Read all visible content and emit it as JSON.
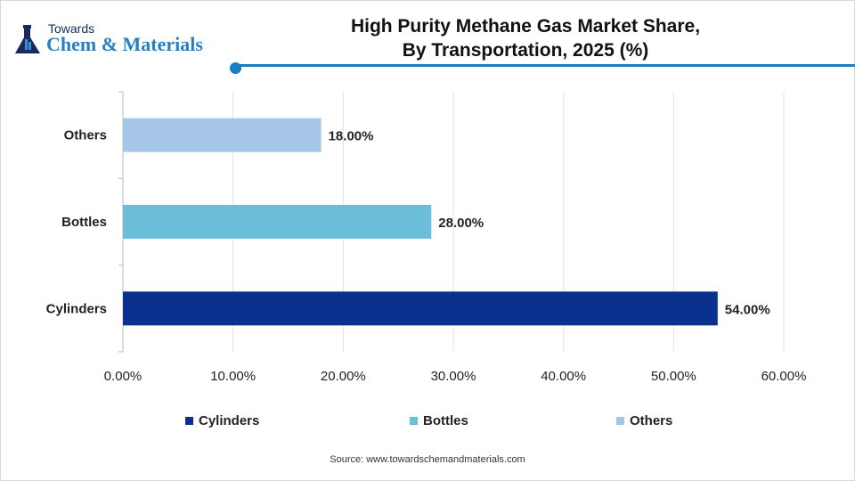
{
  "logo": {
    "line1": "Towards",
    "line2": "Chem & Materials"
  },
  "title_line1": "High Purity Methane Gas Market Share,",
  "title_line2": "By Transportation, 2025 (%)",
  "source": "Source: www.towardschemandmaterials.com",
  "chart_data": {
    "type": "bar",
    "orientation": "horizontal",
    "title": "High Purity Methane Gas Market Share, By Transportation, 2025 (%)",
    "categories": [
      "Cylinders",
      "Bottles",
      "Others"
    ],
    "values": [
      54,
      28,
      18
    ],
    "data_labels": [
      "54.00%",
      "28.00%",
      "18.00%"
    ],
    "colors": [
      "#0b318f",
      "#6bbdd9",
      "#a6c6e8"
    ],
    "xlim": [
      0,
      60
    ],
    "x_ticks": [
      "0.00%",
      "10.00%",
      "20.00%",
      "30.00%",
      "40.00%",
      "50.00%",
      "60.00%"
    ],
    "grid": true,
    "legend": {
      "position": "bottom",
      "entries": [
        "Cylinders",
        "Bottles",
        "Others"
      ]
    }
  }
}
